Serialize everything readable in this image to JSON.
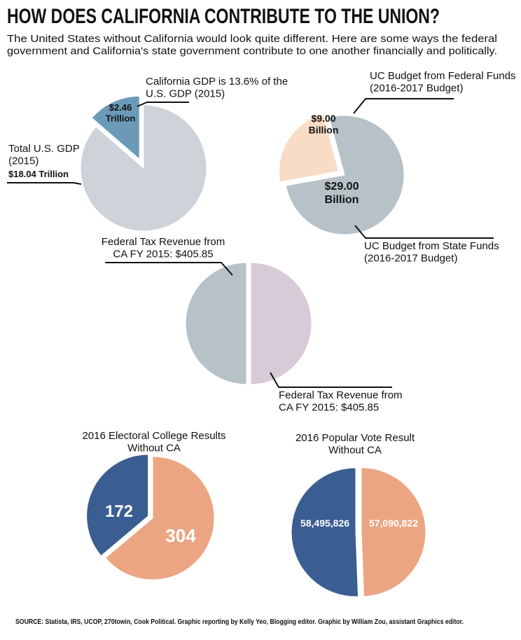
{
  "title": "HOW DOES CALIFORNIA CONTRIBUTE TO THE UNION?",
  "subtitle": "The United States without California would look quite different. Here are some ways the federal\ngovernment and California's state government contribute to one another financially and politically.",
  "source": "SOURCE: Statista, IRS, UCOP, 270towin, Cook Political. Graphic reporting by Kelly Yeo, Blogging editor. Graphic by William Zou, assistant Graphics editor.",
  "chart_data": [
    {
      "type": "pie",
      "categories": [
        "California GDP is 13.6% of the\nU.S. GDP (2015)",
        "Total U.S. GDP\n(2015)"
      ],
      "values": [
        2.46,
        18.04
      ],
      "value_labels": [
        "$2.46\nTrillion",
        "$18.04 Trillion"
      ],
      "colors": [
        "#6b9ab8",
        "#cdd3d9"
      ]
    },
    {
      "type": "pie",
      "categories": [
        "UC Budget from Federal Funds\n(2016-2017 Budget)",
        "UC Budget from State Funds\n(2016-2017 Budget)"
      ],
      "values": [
        9.0,
        29.0
      ],
      "value_labels": [
        "$9.00\nBillion",
        "$29.00\nBillion"
      ],
      "colors": [
        "#f9dcc6",
        "#b7c1c8"
      ]
    },
    {
      "type": "pie",
      "categories": [
        "Federal Tax Revenue from\nCA FY 2015: $405.85",
        "Federal Tax Revenue from\nCA FY 2015: $405.85"
      ],
      "values": [
        405.85,
        405.85
      ],
      "colors": [
        "#b7c1c8",
        "#d9cad7"
      ]
    },
    {
      "type": "pie",
      "title": "2016 Electoral College Results\nWithout CA",
      "values": [
        172,
        304
      ],
      "colors": [
        "#3a5e91",
        "#eca582"
      ]
    },
    {
      "type": "pie",
      "title": "2016 Popular Vote Result\nWithout CA",
      "values": [
        58495826,
        57090822
      ],
      "value_labels": [
        "58,495,826",
        "57,090,822"
      ],
      "colors": [
        "#3a5e91",
        "#eca582"
      ]
    }
  ]
}
